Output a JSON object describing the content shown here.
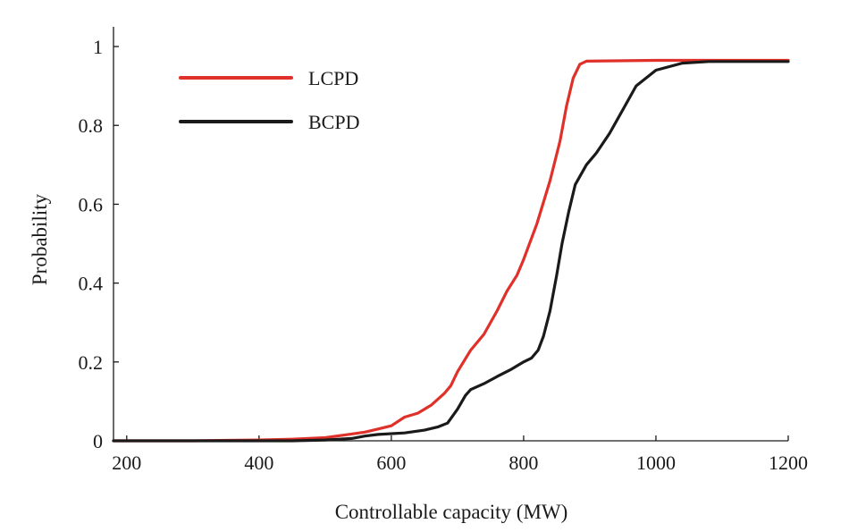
{
  "chart_data": {
    "type": "line",
    "title": "",
    "xlabel": "Controllable capacity (MW)",
    "ylabel": "Probability",
    "xlim": [
      180,
      1200
    ],
    "ylim": [
      0,
      1.05
    ],
    "x_ticks": [
      200,
      400,
      600,
      800,
      1000,
      1200
    ],
    "x_tick_labels": [
      "200",
      "400",
      "600",
      "800",
      "1000",
      "1200"
    ],
    "y_ticks": [
      0,
      0.2,
      0.4,
      0.6,
      0.8,
      1
    ],
    "y_tick_labels": [
      "0",
      "0.2",
      "0.4",
      "0.6",
      "0.8",
      "1"
    ],
    "grid": false,
    "legend_position": "top-left",
    "series": [
      {
        "name": "LCPD",
        "color": "#e0302a",
        "points": [
          [
            180,
            0
          ],
          [
            300,
            0
          ],
          [
            400,
            0.002
          ],
          [
            450,
            0.004
          ],
          [
            500,
            0.008
          ],
          [
            530,
            0.015
          ],
          [
            560,
            0.022
          ],
          [
            580,
            0.03
          ],
          [
            600,
            0.038
          ],
          [
            620,
            0.06
          ],
          [
            640,
            0.07
          ],
          [
            660,
            0.09
          ],
          [
            680,
            0.12
          ],
          [
            690,
            0.14
          ],
          [
            700,
            0.175
          ],
          [
            720,
            0.23
          ],
          [
            740,
            0.27
          ],
          [
            760,
            0.33
          ],
          [
            775,
            0.38
          ],
          [
            790,
            0.42
          ],
          [
            800,
            0.46
          ],
          [
            820,
            0.55
          ],
          [
            840,
            0.66
          ],
          [
            855,
            0.76
          ],
          [
            865,
            0.85
          ],
          [
            875,
            0.92
          ],
          [
            885,
            0.955
          ],
          [
            895,
            0.963
          ],
          [
            1000,
            0.965
          ],
          [
            1200,
            0.965
          ]
        ]
      },
      {
        "name": "BCPD",
        "color": "#1a1a1a",
        "points": [
          [
            180,
            0
          ],
          [
            450,
            0
          ],
          [
            500,
            0.002
          ],
          [
            540,
            0.006
          ],
          [
            560,
            0.012
          ],
          [
            580,
            0.016
          ],
          [
            620,
            0.02
          ],
          [
            650,
            0.027
          ],
          [
            670,
            0.035
          ],
          [
            685,
            0.045
          ],
          [
            700,
            0.08
          ],
          [
            712,
            0.115
          ],
          [
            720,
            0.13
          ],
          [
            740,
            0.145
          ],
          [
            760,
            0.163
          ],
          [
            780,
            0.18
          ],
          [
            800,
            0.2
          ],
          [
            812,
            0.21
          ],
          [
            822,
            0.23
          ],
          [
            830,
            0.265
          ],
          [
            840,
            0.33
          ],
          [
            850,
            0.42
          ],
          [
            858,
            0.5
          ],
          [
            868,
            0.58
          ],
          [
            878,
            0.65
          ],
          [
            895,
            0.7
          ],
          [
            910,
            0.73
          ],
          [
            930,
            0.78
          ],
          [
            950,
            0.84
          ],
          [
            970,
            0.9
          ],
          [
            1000,
            0.94
          ],
          [
            1040,
            0.958
          ],
          [
            1080,
            0.962
          ],
          [
            1200,
            0.962
          ]
        ]
      }
    ]
  }
}
